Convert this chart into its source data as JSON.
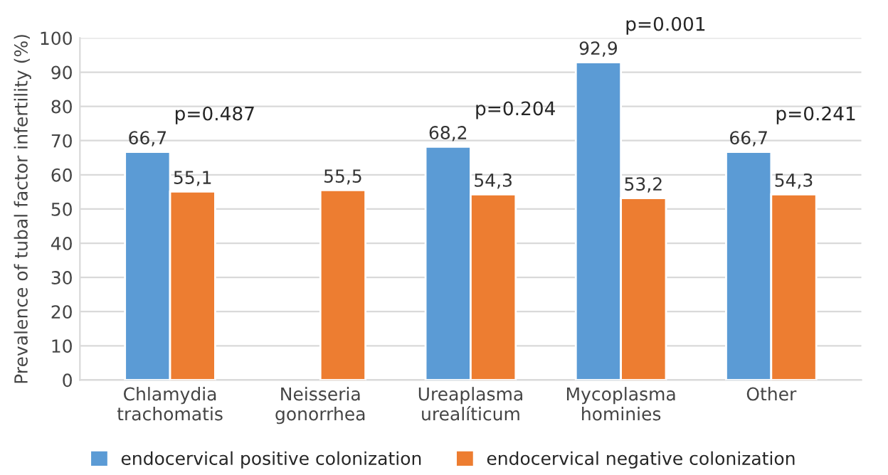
{
  "chart_data": {
    "type": "bar",
    "categories": [
      "Chlamydia\ntrachomatis",
      "Neisseria\ngonorrhea",
      "Ureaplasma\nurealíticum",
      "Mycoplasma\nhominies",
      "Other"
    ],
    "ylabel": "Prevalence of tubal factor infertility (%)",
    "series": [
      {
        "name": "endocervical positive colonization",
        "color": "#5b9bd5",
        "values": [
          66.7,
          null,
          68.2,
          92.9,
          66.7
        ],
        "value_labels": [
          "66,7",
          null,
          "68,2",
          "92,9",
          "66,7"
        ]
      },
      {
        "name": "endocervical negative colonization",
        "color": "#ed7d31",
        "values": [
          55.1,
          55.5,
          54.3,
          53.2,
          54.3
        ],
        "value_labels": [
          "55,1",
          "55,5",
          "54,3",
          "53,2",
          "54,3"
        ]
      }
    ],
    "annotations": [
      "p=0.487",
      "p=0.204",
      "p=0.001",
      "p=0.241"
    ],
    "ylim": [
      0,
      100
    ],
    "yticks": [
      0,
      10,
      20,
      30,
      40,
      50,
      60,
      70,
      80,
      90,
      100
    ],
    "grid": "y",
    "legend": "bottom"
  }
}
